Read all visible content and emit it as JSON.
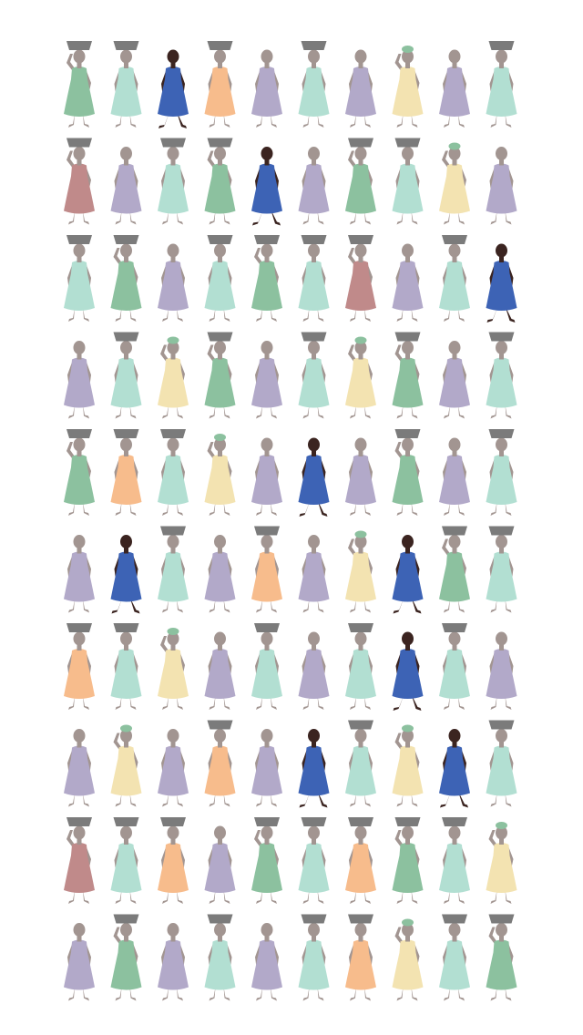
{
  "chart_data": {
    "type": "pictograph",
    "columns": 10,
    "rows": 10,
    "figure_types": {
      "basket_mint": {
        "dress": "#b2dfd2",
        "head": "basket",
        "pose": "hands-down",
        "skin": "#a29591"
      },
      "basket_green": {
        "dress": "#8cc19f",
        "head": "basket",
        "pose": "arm-up",
        "skin": "#a29591"
      },
      "basket_rose": {
        "dress": "#c08a8a",
        "head": "basket",
        "pose": "arm-up",
        "skin": "#a29591"
      },
      "basket_orange": {
        "dress": "#f7bc8c",
        "head": "basket",
        "pose": "hands-down",
        "skin": "#a29591"
      },
      "plain_lavender": {
        "dress": "#b2a9c9",
        "head": "none",
        "pose": "hands-down",
        "skin": "#a29591"
      },
      "plain_orange": {
        "dress": "#f7bc8c",
        "head": "none",
        "pose": "hands-down",
        "skin": "#a29591"
      },
      "jug_yellow": {
        "dress": "#f3e3b1",
        "head": "jug",
        "pose": "arm-up",
        "skin": "#a29591"
      },
      "highlight_blue": {
        "dress": "#3d63b5",
        "head": "none",
        "pose": "walking",
        "skin": "#3b2420"
      }
    },
    "grid": [
      [
        "basket_green",
        "basket_mint",
        "highlight_blue",
        "basket_orange",
        "plain_lavender",
        "basket_mint",
        "plain_lavender",
        "jug_yellow",
        "plain_lavender",
        "basket_mint"
      ],
      [
        "basket_rose",
        "plain_lavender",
        "basket_mint",
        "basket_green",
        "highlight_blue",
        "plain_lavender",
        "basket_green",
        "basket_mint",
        "jug_yellow",
        "plain_lavender"
      ],
      [
        "basket_mint",
        "basket_green",
        "plain_lavender",
        "basket_mint",
        "basket_green",
        "basket_mint",
        "basket_rose",
        "plain_lavender",
        "basket_mint",
        "highlight_blue"
      ],
      [
        "plain_lavender",
        "basket_mint",
        "jug_yellow",
        "basket_green",
        "plain_lavender",
        "basket_mint",
        "jug_yellow",
        "basket_green",
        "plain_lavender",
        "basket_mint"
      ],
      [
        "basket_green",
        "basket_orange",
        "basket_mint",
        "jug_yellow",
        "plain_lavender",
        "highlight_blue",
        "plain_lavender",
        "basket_green",
        "plain_lavender",
        "basket_mint"
      ],
      [
        "plain_lavender",
        "highlight_blue",
        "basket_mint",
        "plain_lavender",
        "basket_orange",
        "plain_lavender",
        "jug_yellow",
        "highlight_blue",
        "basket_green",
        "basket_mint"
      ],
      [
        "basket_orange",
        "basket_mint",
        "jug_yellow",
        "plain_lavender",
        "basket_mint",
        "plain_lavender",
        "basket_mint",
        "highlight_blue",
        "basket_mint",
        "plain_lavender"
      ],
      [
        "plain_lavender",
        "jug_yellow",
        "plain_lavender",
        "basket_orange",
        "plain_lavender",
        "highlight_blue",
        "basket_mint",
        "jug_yellow",
        "highlight_blue",
        "basket_mint"
      ],
      [
        "basket_rose",
        "basket_mint",
        "basket_orange",
        "plain_lavender",
        "basket_green",
        "basket_mint",
        "basket_orange",
        "basket_green",
        "basket_mint",
        "jug_yellow"
      ],
      [
        "plain_lavender",
        "basket_green",
        "plain_lavender",
        "basket_mint",
        "plain_lavender",
        "basket_mint",
        "basket_orange",
        "jug_yellow",
        "basket_mint",
        "basket_green"
      ]
    ],
    "basket_color": "#7b7b7b",
    "jug_color": "#8cc19f"
  }
}
